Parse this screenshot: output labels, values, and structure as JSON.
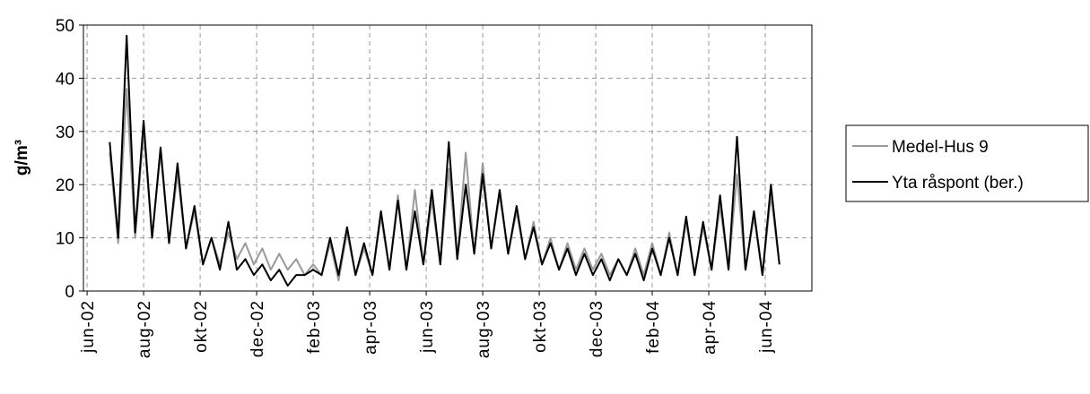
{
  "chart_data": {
    "type": "line",
    "y_label": "g/m³",
    "xlim": [
      -0.13,
      25.65
    ],
    "xticks": [
      {
        "value": 0,
        "label": "jun-02"
      },
      {
        "value": 2,
        "label": "aug-02"
      },
      {
        "value": 4,
        "label": "okt-02"
      },
      {
        "value": 6,
        "label": "dec-02"
      },
      {
        "value": 8,
        "label": "feb-03"
      },
      {
        "value": 10,
        "label": "apr-03"
      },
      {
        "value": 12,
        "label": "jun-03"
      },
      {
        "value": 14,
        "label": "aug-03"
      },
      {
        "value": 16,
        "label": "okt-03"
      },
      {
        "value": 18,
        "label": "dec-03"
      },
      {
        "value": 20,
        "label": "feb-04"
      },
      {
        "value": 22,
        "label": "apr-04"
      },
      {
        "value": 24,
        "label": "jun-04"
      }
    ],
    "ylim": [
      0,
      50
    ],
    "yticks": [
      0,
      10,
      20,
      30,
      40,
      50
    ],
    "grid": true,
    "legend": "right",
    "x": [
      0.8,
      1.1,
      1.4,
      1.7,
      2.0,
      2.3,
      2.6,
      2.9,
      3.2,
      3.5,
      3.8,
      4.1,
      4.4,
      4.7,
      5.0,
      5.3,
      5.6,
      5.9,
      6.2,
      6.5,
      6.8,
      7.1,
      7.4,
      7.7,
      8.0,
      8.3,
      8.6,
      8.9,
      9.2,
      9.5,
      9.8,
      10.1,
      10.4,
      10.7,
      11.0,
      11.3,
      11.6,
      11.9,
      12.2,
      12.5,
      12.8,
      13.1,
      13.4,
      13.7,
      14.0,
      14.3,
      14.6,
      14.9,
      15.2,
      15.5,
      15.8,
      16.1,
      16.4,
      16.7,
      17.0,
      17.3,
      17.6,
      17.9,
      18.2,
      18.5,
      18.8,
      19.1,
      19.4,
      19.7,
      20.0,
      20.3,
      20.6,
      20.9,
      21.2,
      21.5,
      21.8,
      22.1,
      22.4,
      22.7,
      23.0,
      23.3,
      23.6,
      23.9,
      24.2,
      24.5
    ],
    "series": [
      {
        "name": "Medel-Hus 9",
        "color": "#999999",
        "values": [
          26,
          9,
          38,
          10,
          30,
          10,
          26,
          9,
          22,
          8,
          15,
          5,
          10,
          5,
          11,
          6,
          9,
          5,
          8,
          4,
          7,
          4,
          6,
          3,
          5,
          3,
          9,
          2,
          11,
          3,
          8,
          3,
          14,
          4,
          18,
          4,
          19,
          5,
          17,
          5,
          23,
          6,
          26,
          7,
          24,
          8,
          18,
          7,
          15,
          6,
          13,
          5,
          10,
          4,
          9,
          4,
          8,
          4,
          7,
          3,
          6,
          3,
          8,
          3,
          9,
          3,
          11,
          3,
          13,
          3,
          12,
          4,
          16,
          4,
          22,
          4,
          14,
          3,
          18,
          5
        ]
      },
      {
        "name": "Yta råspont (ber.)",
        "color": "#000000",
        "values": [
          28,
          10,
          48,
          11,
          32,
          10,
          27,
          9,
          24,
          8,
          16,
          5,
          10,
          4,
          13,
          4,
          6,
          3,
          5,
          2,
          4,
          1,
          3,
          3,
          4,
          3,
          10,
          3,
          12,
          3,
          9,
          3,
          15,
          4,
          17,
          4,
          15,
          5,
          19,
          5,
          28,
          6,
          20,
          7,
          22,
          8,
          19,
          7,
          16,
          6,
          12,
          5,
          9,
          4,
          8,
          3,
          7,
          3,
          6,
          2,
          6,
          3,
          7,
          2,
          8,
          3,
          10,
          3,
          14,
          3,
          13,
          4,
          18,
          4,
          29,
          4,
          15,
          3,
          20,
          5
        ]
      }
    ]
  }
}
